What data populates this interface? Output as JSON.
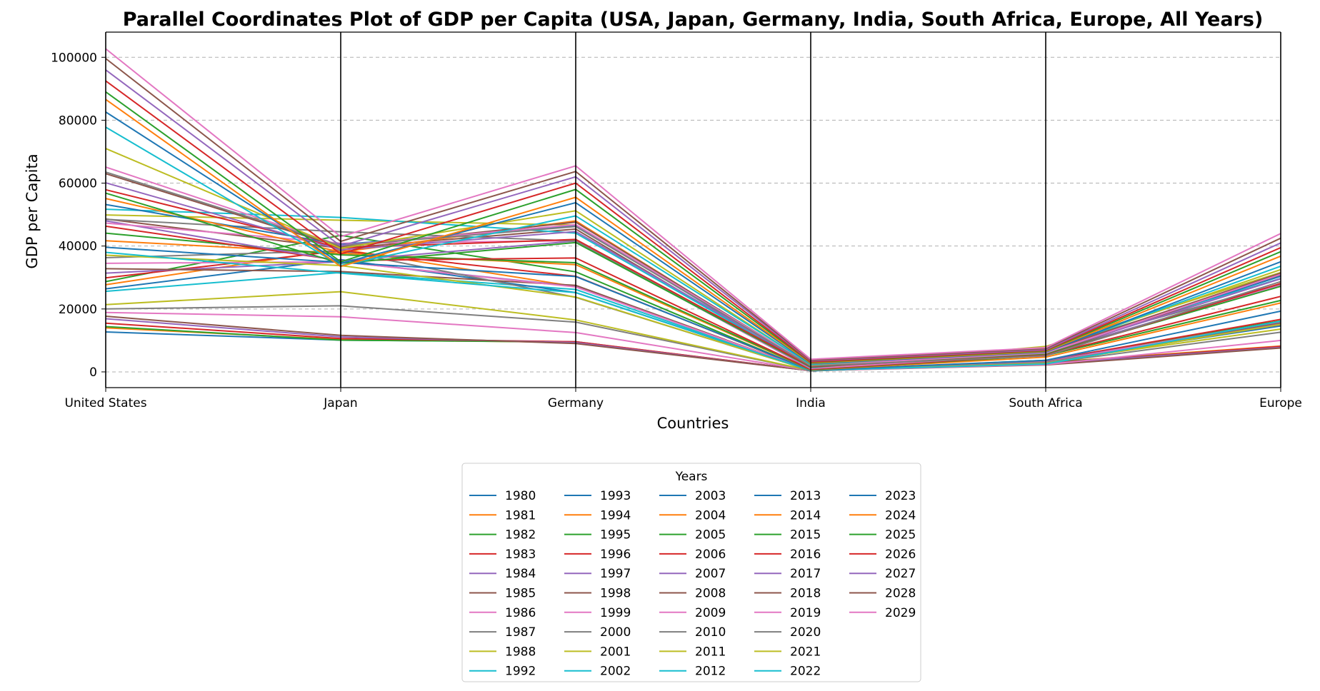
{
  "chart_data": {
    "type": "parallel_coordinates",
    "title": "Parallel Coordinates Plot of GDP per Capita (USA, Japan, Germany, India, South Africa, Europe, All Years)",
    "xlabel": "Countries",
    "ylabel": "GDP per Capita",
    "categories": [
      "United States",
      "Japan",
      "Germany",
      "India",
      "South Africa",
      "Europe"
    ],
    "ylim": [
      -5000,
      108000
    ],
    "yticks": [
      0,
      20000,
      40000,
      60000,
      80000,
      100000
    ],
    "grid": "horizontal dashed",
    "legend": {
      "title": "Years",
      "placement": "bottom-center",
      "columns": 5
    },
    "palette": [
      "#1f77b4",
      "#ff7f0e",
      "#2ca02c",
      "#d62728",
      "#9467bd",
      "#8c564b",
      "#e377c2",
      "#7f7f7f",
      "#bcbd22",
      "#17becf"
    ],
    "series": [
      {
        "name": "1980",
        "color": "#1f77b4",
        "values": [
          12700,
          10100,
          9600,
          350,
          2800,
          8000
        ]
      },
      {
        "name": "1981",
        "color": "#ff7f0e",
        "values": [
          14000,
          10300,
          9400,
          370,
          3000,
          8200
        ]
      },
      {
        "name": "1982",
        "color": "#2ca02c",
        "values": [
          14400,
          10100,
          9500,
          380,
          2900,
          8000
        ]
      },
      {
        "name": "1983",
        "color": "#d62728",
        "values": [
          15500,
          10600,
          9600,
          390,
          2700,
          8100
        ]
      },
      {
        "name": "1984",
        "color": "#9467bd",
        "values": [
          16900,
          11100,
          9300,
          380,
          2600,
          7800
        ]
      },
      {
        "name": "1985",
        "color": "#8c564b",
        "values": [
          17700,
          11600,
          9000,
          380,
          2200,
          7600
        ]
      },
      {
        "name": "1986",
        "color": "#e377c2",
        "values": [
          18900,
          17500,
          12500,
          400,
          2300,
          10000
        ]
      },
      {
        "name": "1987",
        "color": "#7f7f7f",
        "values": [
          20000,
          21000,
          15800,
          420,
          2800,
          12600
        ]
      },
      {
        "name": "1988",
        "color": "#bcbd22",
        "values": [
          21400,
          25500,
          16500,
          450,
          3200,
          13600
        ]
      },
      {
        "name": "1992",
        "color": "#17becf",
        "values": [
          25600,
          31600,
          26200,
          320,
          3400,
          15000
        ]
      },
      {
        "name": "1993",
        "color": "#1f77b4",
        "values": [
          26400,
          35700,
          25200,
          300,
          3300,
          14600
        ]
      },
      {
        "name": "1994",
        "color": "#ff7f0e",
        "values": [
          27700,
          39000,
          27100,
          350,
          3400,
          15200
        ]
      },
      {
        "name": "1995",
        "color": "#2ca02c",
        "values": [
          28700,
          43400,
          31800,
          370,
          3700,
          16200
        ]
      },
      {
        "name": "1996",
        "color": "#d62728",
        "values": [
          29900,
          38500,
          30400,
          400,
          3600,
          16700
        ]
      },
      {
        "name": "1997",
        "color": "#9467bd",
        "values": [
          31400,
          35000,
          27200,
          420,
          3500,
          15500
        ]
      },
      {
        "name": "1998",
        "color": "#8c564b",
        "values": [
          32800,
          31900,
          27500,
          410,
          3200,
          15700
        ]
      },
      {
        "name": "1999",
        "color": "#e377c2",
        "values": [
          34500,
          35000,
          27000,
          440,
          3100,
          16000
        ]
      },
      {
        "name": "2000",
        "color": "#7f7f7f",
        "values": [
          36300,
          38500,
          23700,
          450,
          3000,
          15000
        ]
      },
      {
        "name": "2001",
        "color": "#bcbd22",
        "values": [
          37100,
          33800,
          23800,
          460,
          2700,
          15100
        ]
      },
      {
        "name": "2002",
        "color": "#17becf",
        "values": [
          38000,
          31400,
          25200,
          470,
          2500,
          16100
        ]
      },
      {
        "name": "2003",
        "color": "#1f77b4",
        "values": [
          39600,
          34800,
          30300,
          540,
          3700,
          19300
        ]
      },
      {
        "name": "2004",
        "color": "#ff7f0e",
        "values": [
          41700,
          37700,
          34100,
          620,
          4700,
          21900
        ]
      },
      {
        "name": "2005",
        "color": "#2ca02c",
        "values": [
          44100,
          37200,
          34700,
          710,
          5200,
          22700
        ]
      },
      {
        "name": "2006",
        "color": "#d62728",
        "values": [
          46300,
          35400,
          36200,
          800,
          5400,
          24000
        ]
      },
      {
        "name": "2007",
        "color": "#9467bd",
        "values": [
          48000,
          35300,
          41600,
          1000,
          5900,
          27900
        ]
      },
      {
        "name": "2008",
        "color": "#8c564b",
        "values": [
          48600,
          39300,
          45400,
          1000,
          5600,
          30700
        ]
      },
      {
        "name": "2009",
        "color": "#e377c2",
        "values": [
          47300,
          40900,
          41700,
          1100,
          5600,
          27500
        ]
      },
      {
        "name": "2010",
        "color": "#7f7f7f",
        "values": [
          48500,
          44500,
          41600,
          1350,
          7300,
          28000
        ]
      },
      {
        "name": "2011",
        "color": "#bcbd22",
        "values": [
          49900,
          48200,
          46700,
          1450,
          8100,
          31600
        ]
      },
      {
        "name": "2012",
        "color": "#17becf",
        "values": [
          51700,
          49100,
          44100,
          1440,
          7500,
          29700
        ]
      },
      {
        "name": "2013",
        "color": "#1f77b4",
        "values": [
          53200,
          40500,
          46500,
          1450,
          6900,
          30400
        ]
      },
      {
        "name": "2014",
        "color": "#ff7f0e",
        "values": [
          55100,
          38100,
          48000,
          1570,
          6500,
          31200
        ]
      },
      {
        "name": "2015",
        "color": "#2ca02c",
        "values": [
          56800,
          34500,
          41100,
          1600,
          5700,
          27200
        ]
      },
      {
        "name": "2016",
        "color": "#d62728",
        "values": [
          57900,
          39400,
          42100,
          1730,
          5300,
          28100
        ]
      },
      {
        "name": "2017",
        "color": "#9467bd",
        "values": [
          60100,
          38800,
          44600,
          1980,
          6100,
          29600
        ]
      },
      {
        "name": "2018",
        "color": "#8c564b",
        "values": [
          63000,
          39700,
          47600,
          2010,
          6400,
          31400
        ]
      },
      {
        "name": "2019",
        "color": "#e377c2",
        "values": [
          65100,
          40200,
          46800,
          2100,
          6000,
          31000
        ]
      },
      {
        "name": "2020",
        "color": "#7f7f7f",
        "values": [
          63500,
          40100,
          46200,
          1900,
          5100,
          28700
        ]
      },
      {
        "name": "2021",
        "color": "#bcbd22",
        "values": [
          71000,
          39300,
          51200,
          2250,
          7000,
          32500
        ]
      },
      {
        "name": "2022",
        "color": "#17becf",
        "values": [
          77800,
          33800,
          49600,
          2390,
          6700,
          33600
        ]
      },
      {
        "name": "2023",
        "color": "#1f77b4",
        "values": [
          82600,
          34500,
          53800,
          2600,
          6300,
          35000
        ]
      },
      {
        "name": "2024",
        "color": "#ff7f0e",
        "values": [
          86600,
          33500,
          55500,
          2800,
          6500,
          36800
        ]
      },
      {
        "name": "2025",
        "color": "#2ca02c",
        "values": [
          89000,
          35000,
          58000,
          3000,
          6700,
          38200
        ]
      },
      {
        "name": "2026",
        "color": "#d62728",
        "values": [
          92500,
          37500,
          60000,
          3200,
          6900,
          39500
        ]
      },
      {
        "name": "2027",
        "color": "#9467bd",
        "values": [
          96000,
          40000,
          62000,
          3500,
          7100,
          41000
        ]
      },
      {
        "name": "2028",
        "color": "#8c564b",
        "values": [
          99600,
          41500,
          63700,
          3700,
          7400,
          42500
        ]
      },
      {
        "name": "2029",
        "color": "#e377c2",
        "values": [
          102700,
          43000,
          65500,
          4000,
          7700,
          44000
        ]
      }
    ]
  }
}
